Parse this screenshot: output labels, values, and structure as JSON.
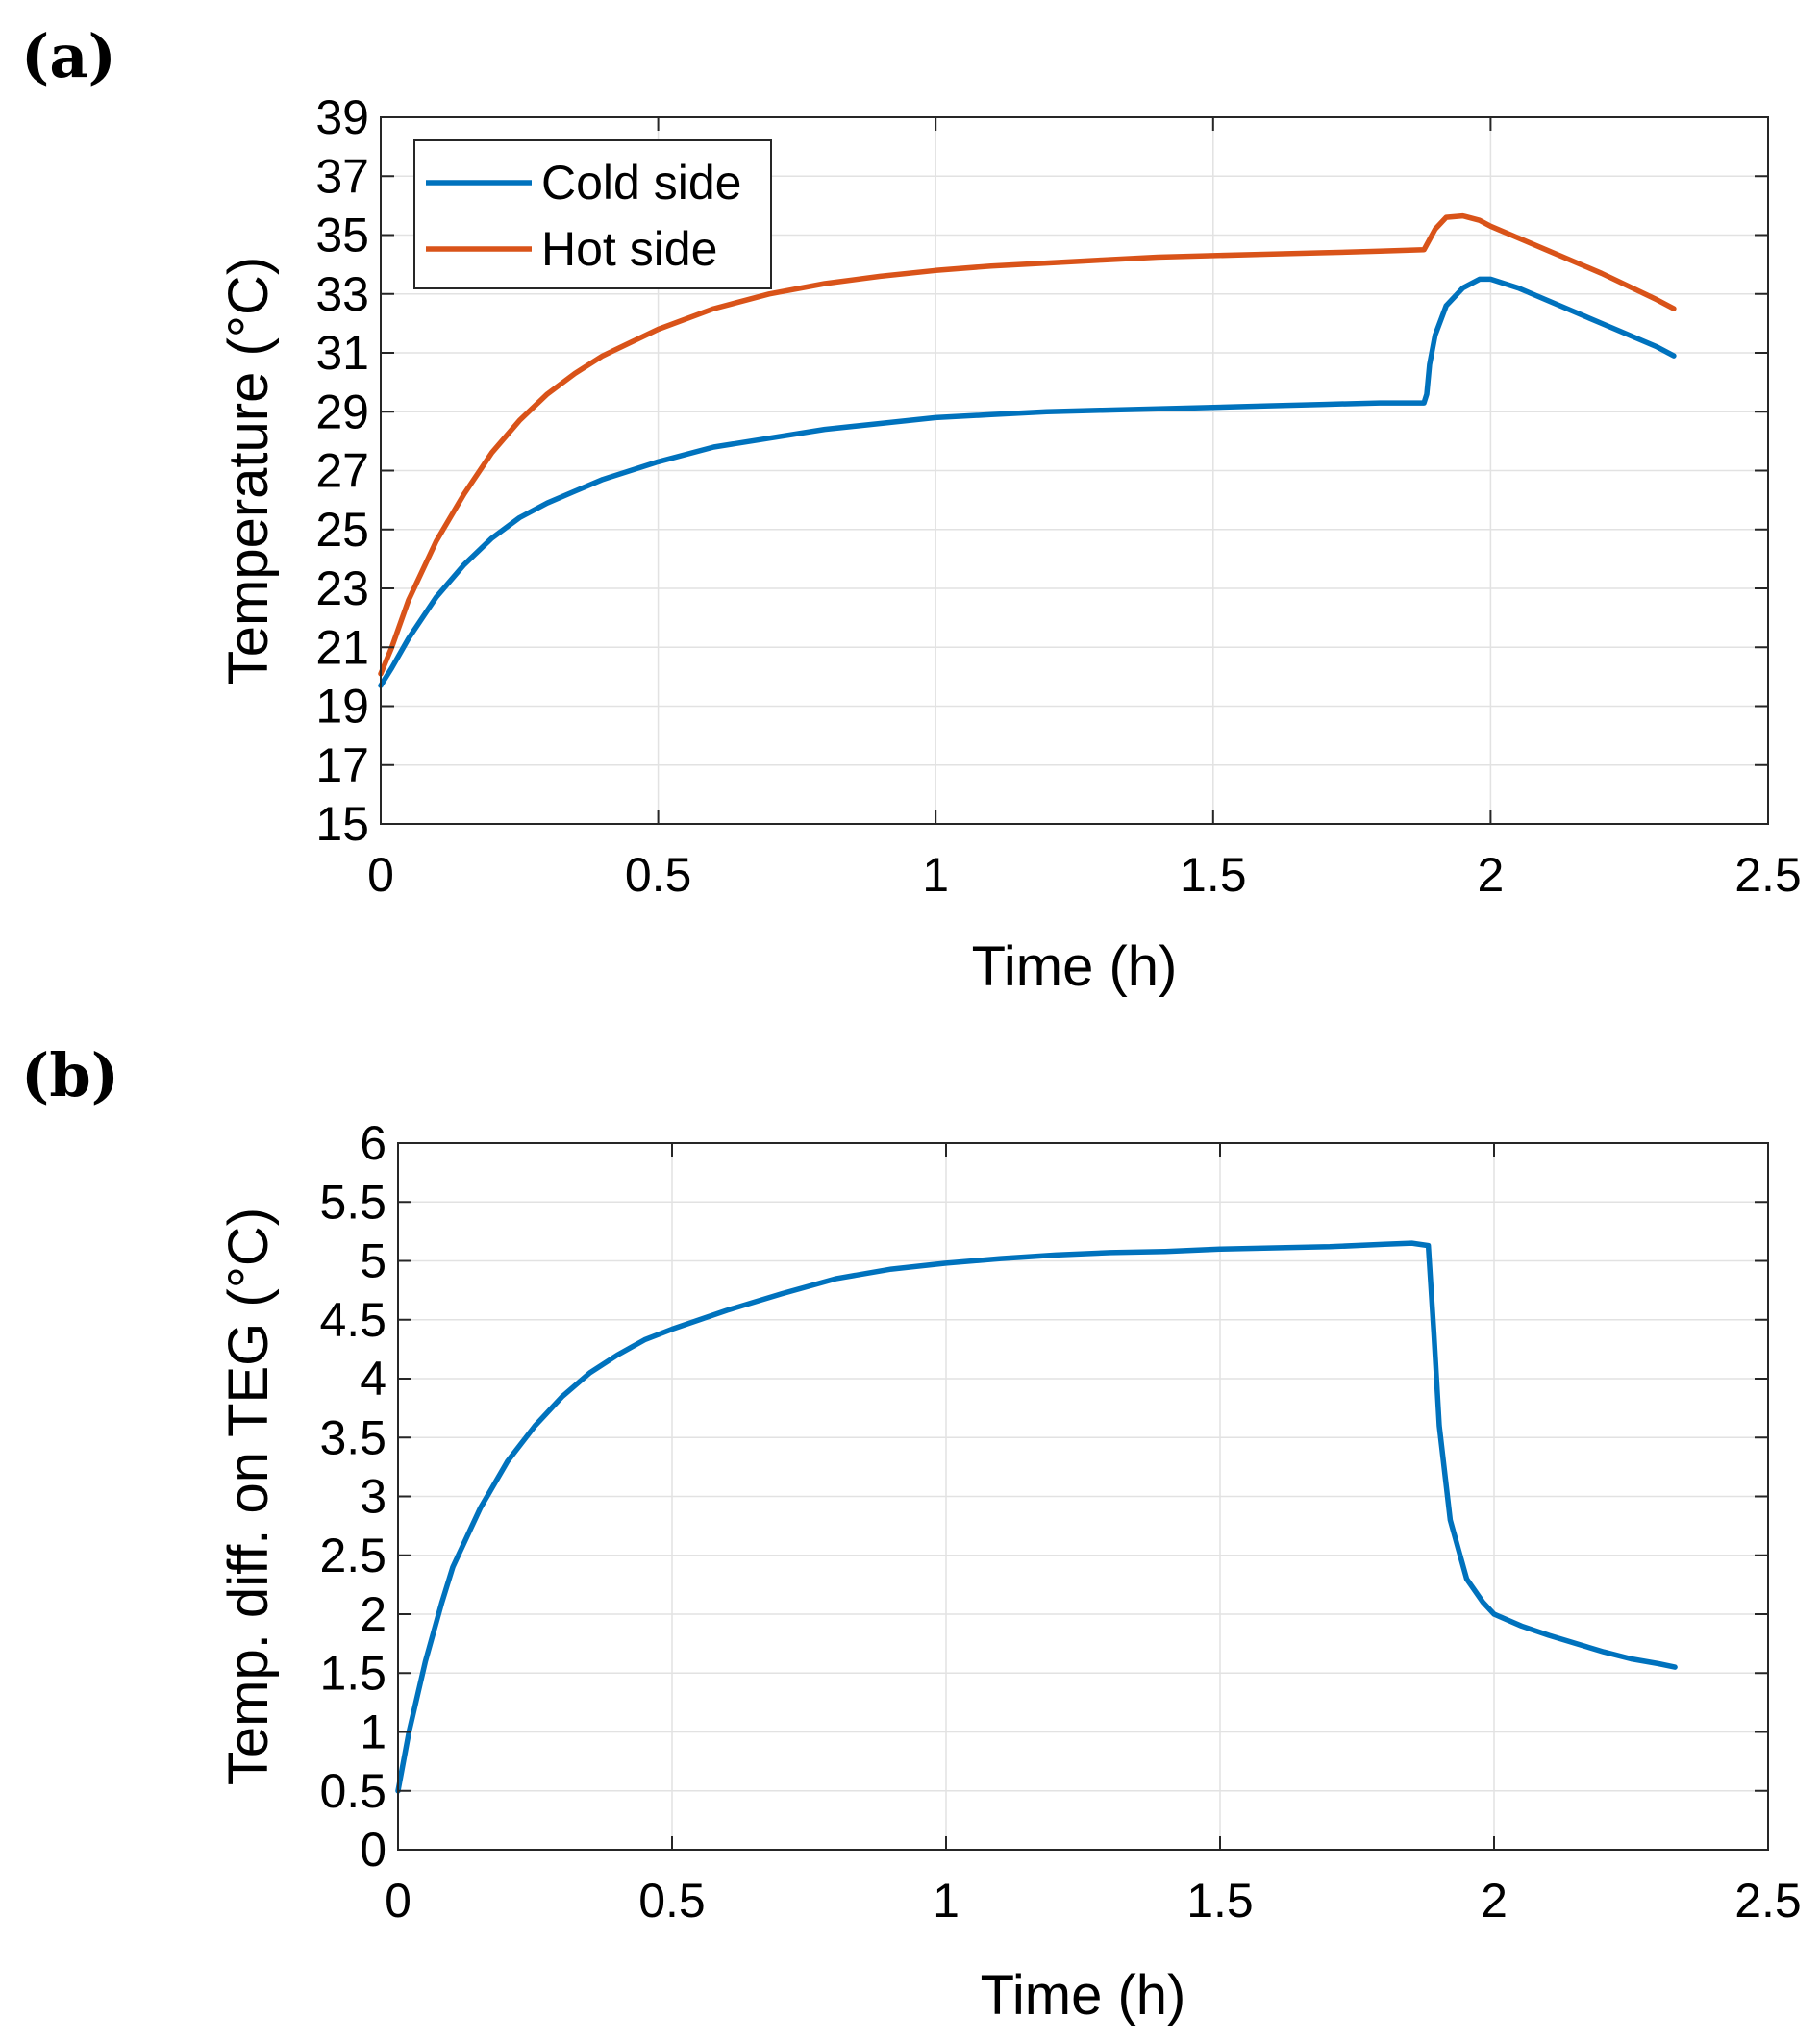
{
  "chart_data": [
    {
      "panel_label": "(a)",
      "type": "line",
      "xlabel": "Time (h)",
      "ylabel": "Temperature (°C)",
      "xlim": [
        0,
        2.5
      ],
      "ylim": [
        15,
        39
      ],
      "xticks": [
        0,
        0.5,
        1,
        1.5,
        2,
        2.5
      ],
      "xtick_labels": [
        "0",
        "0.5",
        "1",
        "1.5",
        "2",
        "2.5"
      ],
      "yticks": [
        15,
        17,
        19,
        21,
        23,
        25,
        27,
        29,
        31,
        33,
        35,
        37,
        39
      ],
      "ytick_labels": [
        "15",
        "17",
        "19",
        "21",
        "23",
        "25",
        "27",
        "29",
        "31",
        "33",
        "35",
        "37",
        "39"
      ],
      "grid": true,
      "legend_position": "top-left",
      "series": [
        {
          "name": "Cold side",
          "color": "#0072BD",
          "x": [
            0,
            0.02,
            0.05,
            0.1,
            0.15,
            0.2,
            0.25,
            0.3,
            0.35,
            0.4,
            0.5,
            0.6,
            0.7,
            0.8,
            0.9,
            1.0,
            1.1,
            1.2,
            1.3,
            1.4,
            1.5,
            1.6,
            1.7,
            1.8,
            1.88,
            1.885,
            1.89,
            1.9,
            1.92,
            1.95,
            1.98,
            2.0,
            2.05,
            2.1,
            2.15,
            2.2,
            2.25,
            2.3,
            2.33
          ],
          "y": [
            19.7,
            20.3,
            21.3,
            22.7,
            23.8,
            24.7,
            25.4,
            25.9,
            26.3,
            26.7,
            27.3,
            27.8,
            28.1,
            28.4,
            28.6,
            28.8,
            28.9,
            29.0,
            29.05,
            29.1,
            29.15,
            29.2,
            29.25,
            29.3,
            29.3,
            29.6,
            30.6,
            31.6,
            32.6,
            33.2,
            33.5,
            33.5,
            33.2,
            32.8,
            32.4,
            32.0,
            31.6,
            31.2,
            30.9
          ]
        },
        {
          "name": "Hot side",
          "color": "#D95319",
          "x": [
            0,
            0.02,
            0.05,
            0.1,
            0.15,
            0.2,
            0.25,
            0.3,
            0.35,
            0.4,
            0.5,
            0.6,
            0.7,
            0.8,
            0.9,
            1.0,
            1.1,
            1.2,
            1.3,
            1.4,
            1.5,
            1.6,
            1.7,
            1.8,
            1.88,
            1.9,
            1.92,
            1.95,
            1.98,
            2.0,
            2.1,
            2.2,
            2.3,
            2.33
          ],
          "y": [
            20.1,
            21.0,
            22.6,
            24.6,
            26.2,
            27.6,
            28.7,
            29.6,
            30.3,
            30.9,
            31.8,
            32.5,
            33.0,
            33.35,
            33.6,
            33.8,
            33.95,
            34.05,
            34.15,
            34.25,
            34.3,
            34.35,
            34.4,
            34.45,
            34.5,
            35.2,
            35.6,
            35.65,
            35.5,
            35.3,
            34.5,
            33.7,
            32.8,
            32.5
          ]
        }
      ]
    },
    {
      "panel_label": "(b)",
      "type": "line",
      "xlabel": "Time (h)",
      "ylabel": "Temp. diff. on TEG (°C)",
      "xlim": [
        0,
        2.5
      ],
      "ylim": [
        0,
        6
      ],
      "xticks": [
        0,
        0.5,
        1,
        1.5,
        2,
        2.5
      ],
      "xtick_labels": [
        "0",
        "0.5",
        "1",
        "1.5",
        "2",
        "2.5"
      ],
      "yticks": [
        0,
        0.5,
        1,
        1.5,
        2,
        2.5,
        3,
        3.5,
        4,
        4.5,
        5,
        5.5,
        6
      ],
      "ytick_labels": [
        "0",
        "0.5",
        "1",
        "1.5",
        "2",
        "2.5",
        "3",
        "3.5",
        "4",
        "4.5",
        "5",
        "5.5",
        "6"
      ],
      "grid": true,
      "series": [
        {
          "name": "Temp. diff.",
          "color": "#0072BD",
          "x": [
            0,
            0.02,
            0.05,
            0.08,
            0.1,
            0.15,
            0.2,
            0.25,
            0.3,
            0.35,
            0.4,
            0.45,
            0.5,
            0.6,
            0.7,
            0.8,
            0.9,
            1.0,
            1.1,
            1.2,
            1.3,
            1.4,
            1.5,
            1.6,
            1.7,
            1.8,
            1.85,
            1.88,
            1.89,
            1.9,
            1.92,
            1.95,
            1.98,
            2.0,
            2.05,
            2.1,
            2.15,
            2.2,
            2.25,
            2.3,
            2.33
          ],
          "y": [
            0.5,
            1.0,
            1.6,
            2.1,
            2.4,
            2.9,
            3.3,
            3.6,
            3.85,
            4.05,
            4.2,
            4.33,
            4.42,
            4.58,
            4.72,
            4.85,
            4.93,
            4.98,
            5.02,
            5.05,
            5.07,
            5.08,
            5.1,
            5.11,
            5.12,
            5.14,
            5.15,
            5.13,
            4.4,
            3.6,
            2.8,
            2.3,
            2.1,
            2.0,
            1.9,
            1.82,
            1.75,
            1.68,
            1.62,
            1.58,
            1.55
          ]
        }
      ]
    }
  ]
}
